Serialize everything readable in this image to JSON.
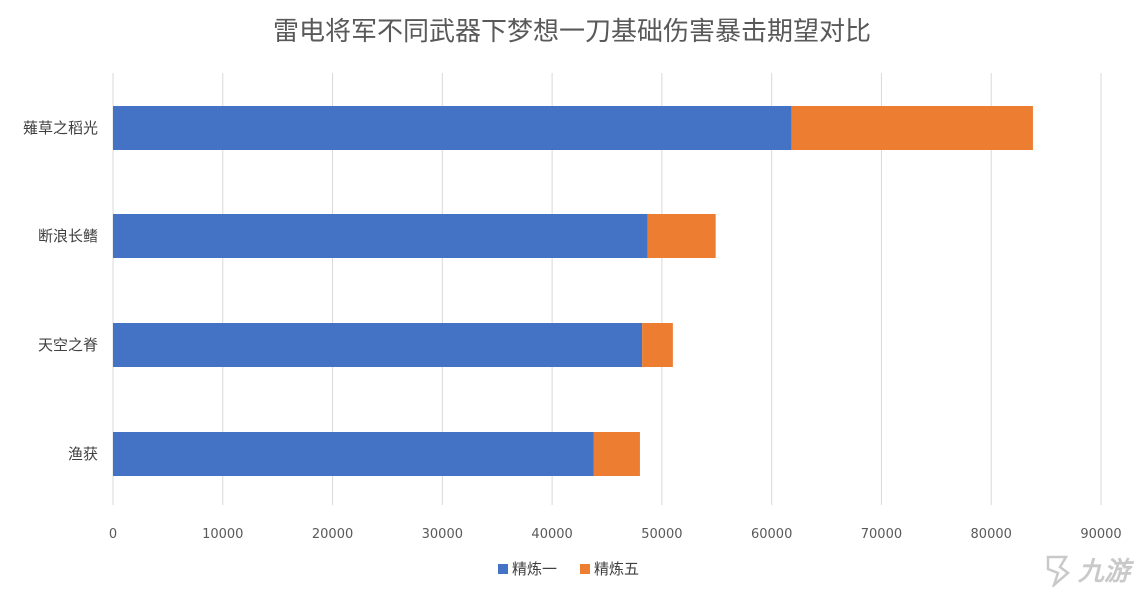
{
  "chart_data": {
    "type": "bar",
    "orientation": "horizontal",
    "stacked": true,
    "title": "雷电将军不同武器下梦想一刀基础伤害暴击期望对比",
    "categories": [
      "薙草之稻光",
      "断浪长鳍",
      "天空之脊",
      "渔获"
    ],
    "series": [
      {
        "name": "精炼一",
        "color": "#4472C4",
        "values": [
          61800,
          48700,
          48200,
          43800
        ]
      },
      {
        "name": "精炼五",
        "color": "#ED7D31",
        "values": [
          22000,
          6200,
          2800,
          4200
        ]
      }
    ],
    "xlim": [
      0,
      90000
    ],
    "xticks": [
      0,
      10000,
      20000,
      30000,
      40000,
      50000,
      60000,
      70000,
      80000,
      90000
    ],
    "grid": true,
    "legend_position": "bottom"
  },
  "watermark": {
    "text": "九游",
    "icon": "jiuyou-logo-icon"
  }
}
